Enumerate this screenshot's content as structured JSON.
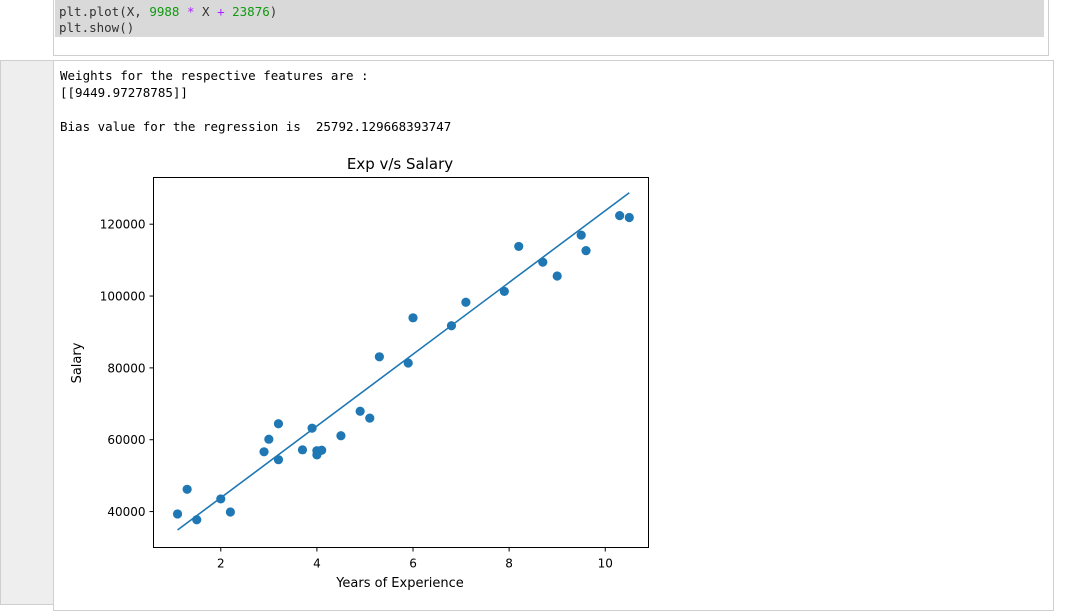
{
  "code": {
    "line1": {
      "prefix": "plt.plot(X, ",
      "num1": "9988",
      "op1": " * ",
      "mid": "X ",
      "op2": "+",
      "space": " ",
      "num2": "23876",
      "suffix": ")"
    },
    "line2": "plt.show()"
  },
  "output": {
    "weights_label": "Weights for the respective features are :",
    "weights_value": "[[9449.97278785]]",
    "bias_text": "Bias value for the regression is  25792.129668393747"
  },
  "colors": {
    "series": "#1f77b4",
    "code_bg": "#d9d9d9",
    "number": "#119911",
    "operator": "#aa22ff"
  },
  "chart_data": {
    "type": "scatter",
    "title": "Exp v/s Salary",
    "xlabel": "Years of Experience",
    "ylabel": "Salary",
    "xlim": [
      0.6,
      10.9
    ],
    "ylim": [
      30000,
      133000
    ],
    "xticks": [
      2,
      4,
      6,
      8,
      10
    ],
    "yticks": [
      40000,
      60000,
      80000,
      100000,
      120000
    ],
    "grid": false,
    "points": [
      [
        1.1,
        39343
      ],
      [
        1.3,
        46205
      ],
      [
        1.5,
        37731
      ],
      [
        2.0,
        43525
      ],
      [
        2.2,
        39891
      ],
      [
        2.9,
        56642
      ],
      [
        3.0,
        60150
      ],
      [
        3.2,
        54445
      ],
      [
        3.2,
        64445
      ],
      [
        3.7,
        57189
      ],
      [
        3.9,
        63218
      ],
      [
        4.0,
        55794
      ],
      [
        4.0,
        56957
      ],
      [
        4.1,
        57081
      ],
      [
        4.5,
        61111
      ],
      [
        4.9,
        67938
      ],
      [
        5.1,
        66029
      ],
      [
        5.3,
        83088
      ],
      [
        5.9,
        81363
      ],
      [
        6.0,
        93940
      ],
      [
        6.8,
        91738
      ],
      [
        7.1,
        98273
      ],
      [
        7.9,
        101302
      ],
      [
        8.2,
        113812
      ],
      [
        8.7,
        109431
      ],
      [
        9.0,
        105582
      ],
      [
        9.5,
        116969
      ],
      [
        9.6,
        112635
      ],
      [
        10.3,
        122391
      ],
      [
        10.5,
        121872
      ]
    ],
    "line": {
      "x": [
        1.1,
        10.5
      ],
      "y": [
        34863,
        128750
      ]
    }
  }
}
